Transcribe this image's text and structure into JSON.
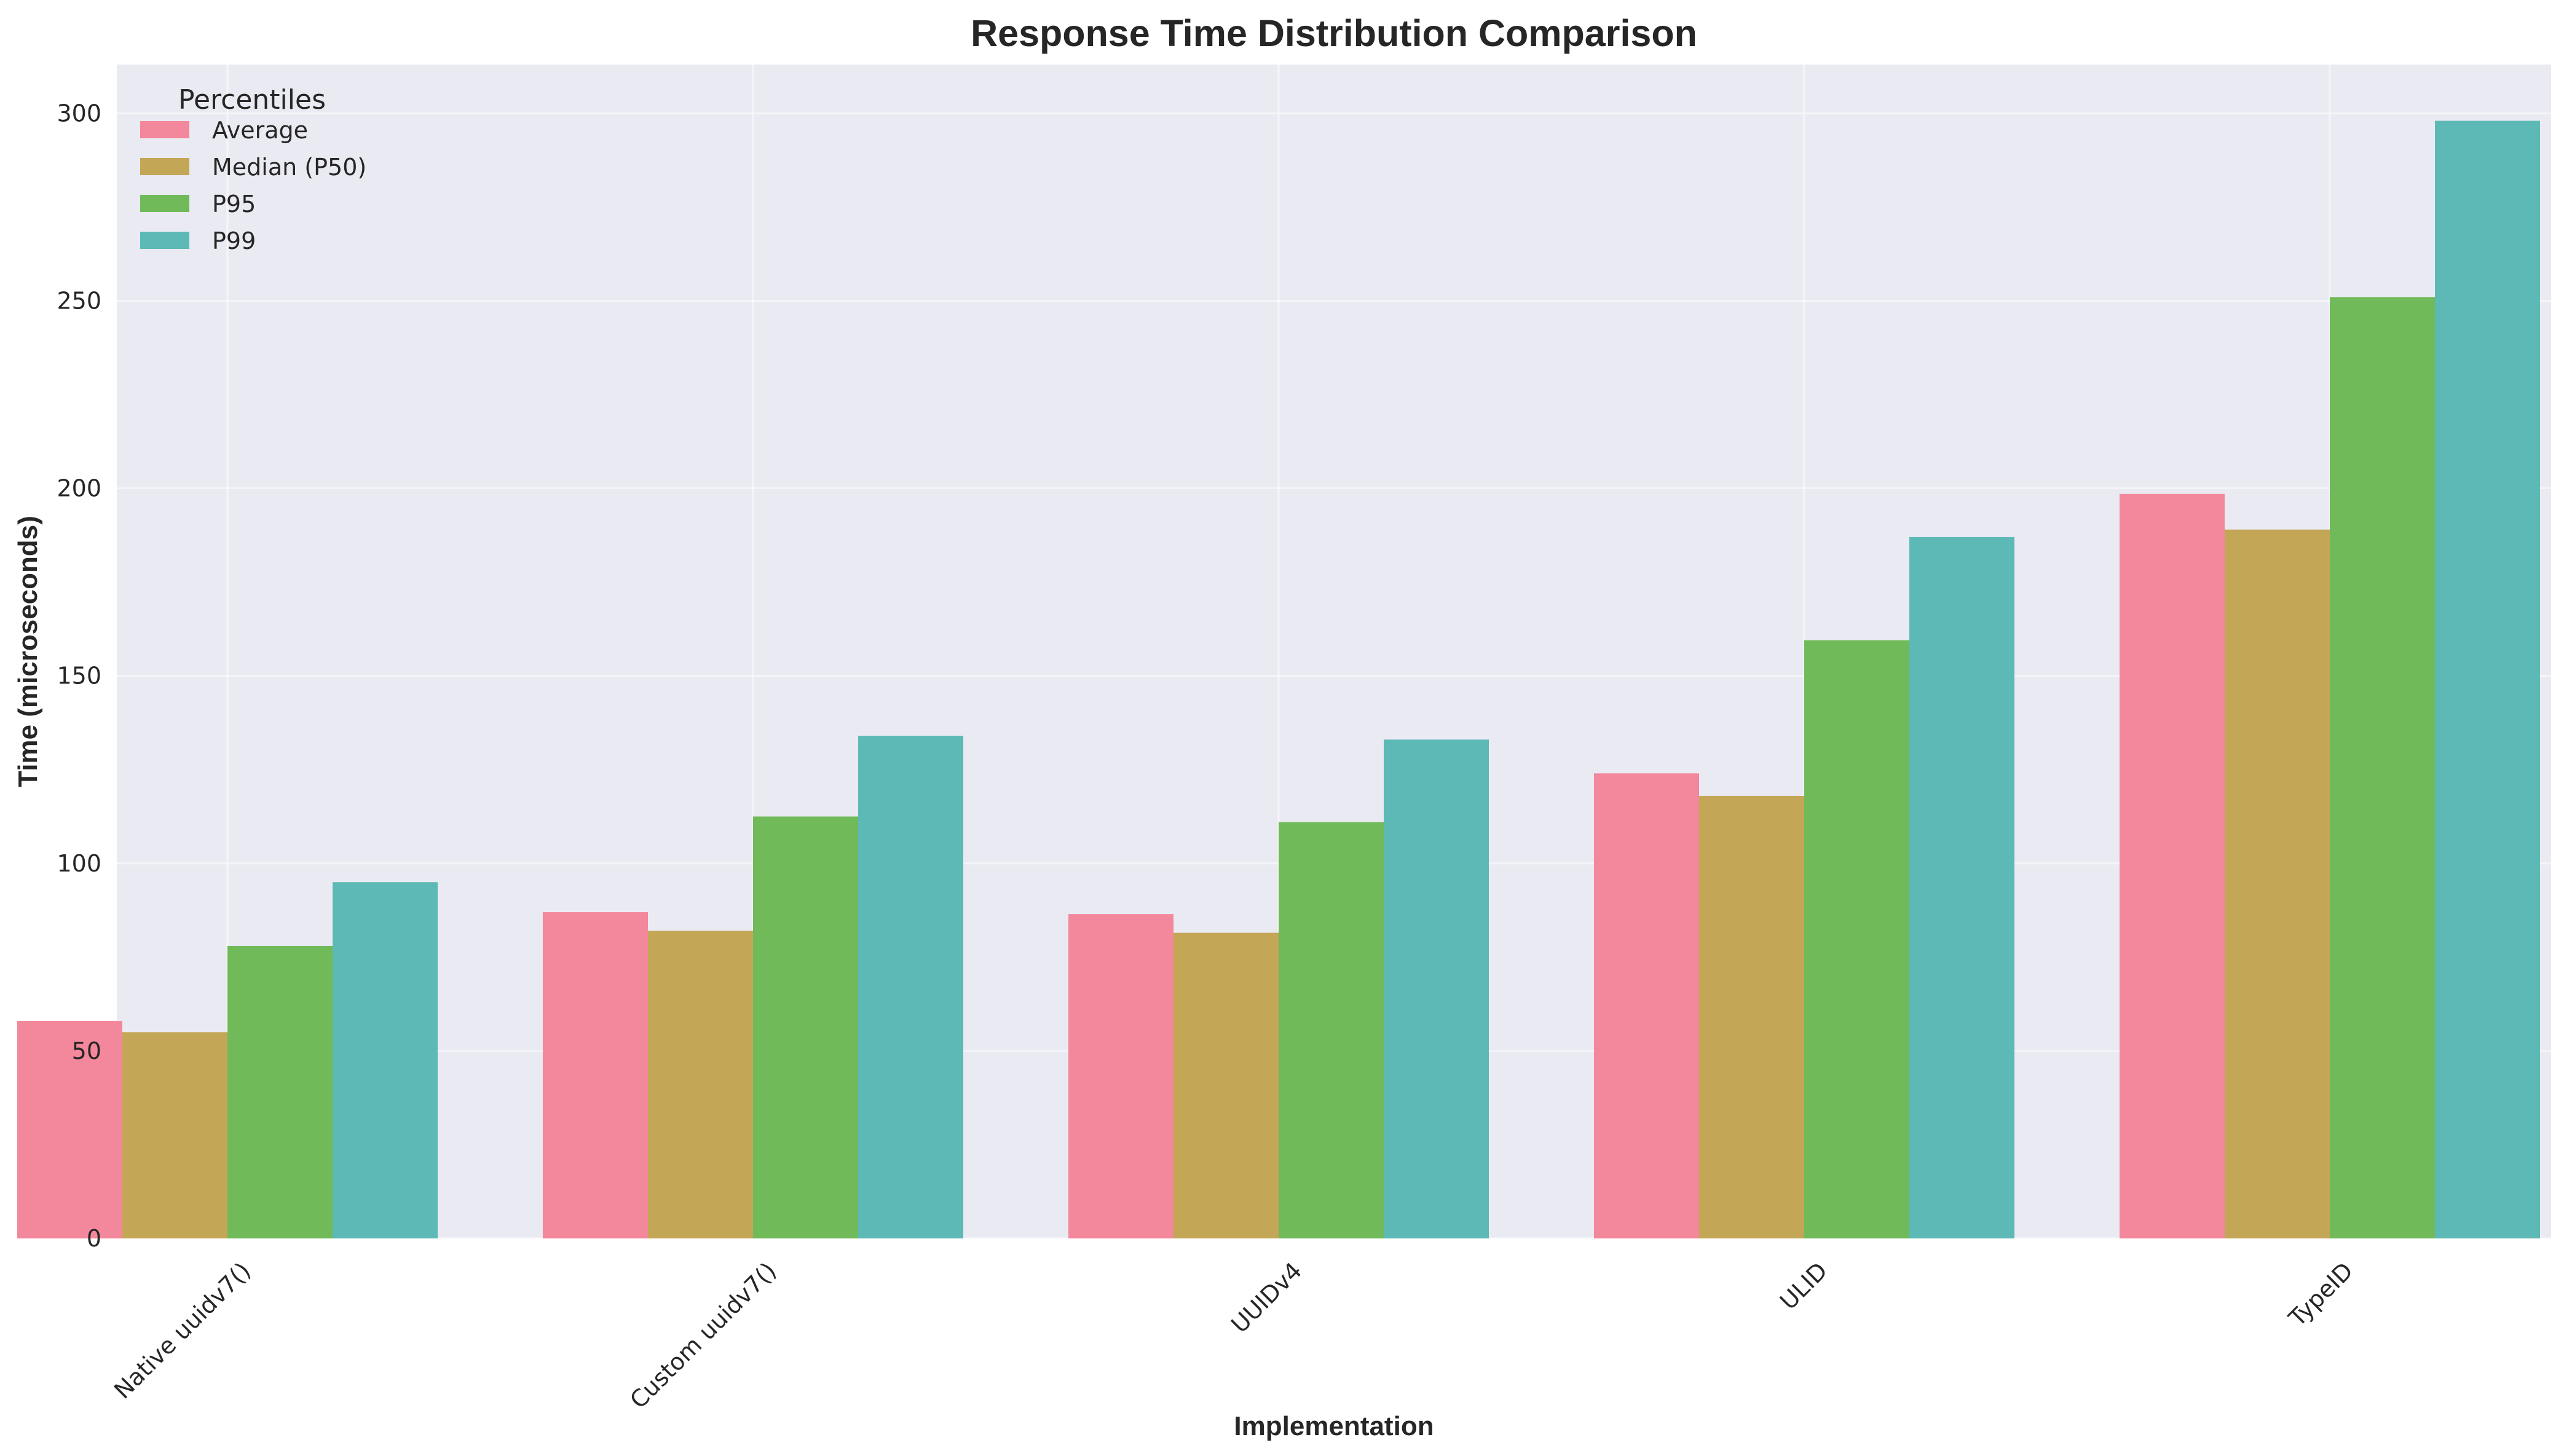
{
  "chart_data": {
    "type": "bar",
    "title": "Response Time Distribution Comparison",
    "xlabel": "Implementation",
    "ylabel": "Time (microseconds)",
    "ylim": [
      0,
      313
    ],
    "yticks": [
      0,
      50,
      100,
      150,
      200,
      250,
      300
    ],
    "grid": true,
    "legend_title": "Percentiles",
    "legend_position": "top-left",
    "categories": [
      "Native uuidv7()",
      "Custom uuidv7()",
      "UUIDv4",
      "ULID",
      "TypeID"
    ],
    "series": [
      {
        "name": "Average",
        "color": "#f3879b",
        "values": [
          58,
          87,
          86.5,
          124,
          198.5
        ]
      },
      {
        "name": "Median (P50)",
        "color": "#c4a657",
        "values": [
          55,
          82,
          81.5,
          118,
          189
        ]
      },
      {
        "name": "P95",
        "color": "#70ba59",
        "values": [
          78,
          112.5,
          111,
          159.5,
          251
        ]
      },
      {
        "name": "P99",
        "color": "#5cb9b5",
        "values": [
          95,
          134,
          133,
          187,
          298
        ]
      }
    ]
  }
}
